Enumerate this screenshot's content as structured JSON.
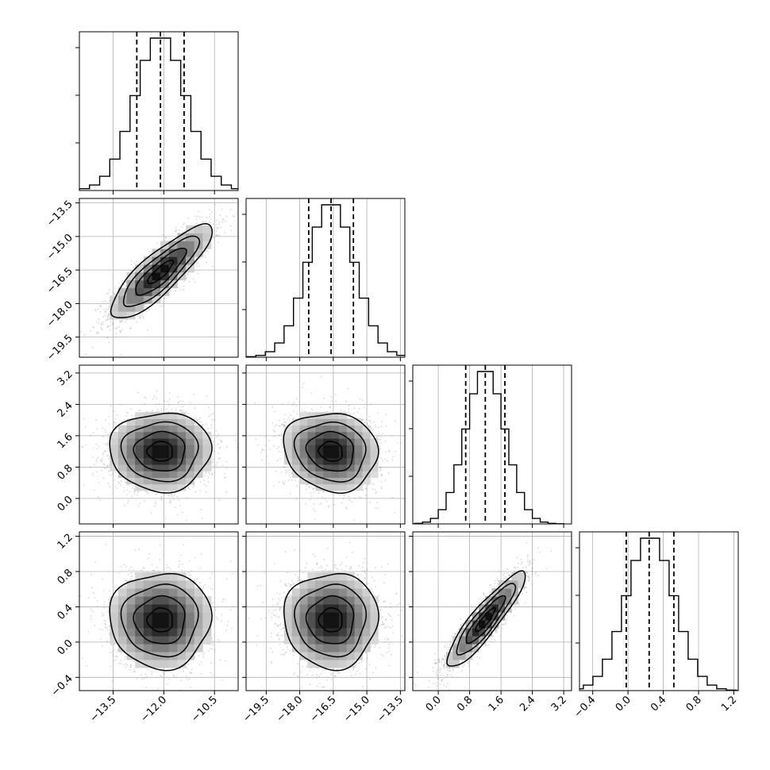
{
  "chart_data": {
    "type": "corner",
    "parameters": [
      {
        "range": [
          -14.5,
          -9.8
        ],
        "ticks": [
          -13.5,
          -12.0,
          -10.5
        ],
        "tick_labels": [
          "−13.5",
          "−12.0",
          "−10.5"
        ],
        "mean": -12.1,
        "sd": 0.75,
        "quantiles": [
          -12.8,
          -12.1,
          -11.4
        ]
      },
      {
        "range": [
          -20.4,
          -13.3
        ],
        "ticks": [
          -19.5,
          -18.0,
          -16.5,
          -15.0,
          -13.5
        ],
        "tick_labels": [
          "−19.5",
          "−18.0",
          "−16.5",
          "−15.0",
          "−13.5"
        ],
        "mean": -16.6,
        "sd": 1.05,
        "quantiles": [
          -17.6,
          -16.6,
          -15.6
        ]
      },
      {
        "range": [
          -0.65,
          3.4
        ],
        "ticks": [
          0.0,
          0.8,
          1.6,
          2.4,
          3.2
        ],
        "tick_labels": [
          "0.0",
          "0.8",
          "1.6",
          "2.4",
          "3.2"
        ],
        "mean": 1.2,
        "sd": 0.5,
        "quantiles": [
          0.7,
          1.2,
          1.7
        ]
      },
      {
        "range": [
          -0.55,
          1.25
        ],
        "ticks": [
          -0.4,
          0.0,
          0.4,
          0.8,
          1.2
        ],
        "tick_labels": [
          "−0.4",
          "0.0",
          "0.4",
          "0.8",
          "1.2"
        ],
        "mean": 0.25,
        "sd": 0.27,
        "quantiles": [
          -0.02,
          0.24,
          0.52
        ]
      }
    ],
    "correlations": [
      [
        1.0,
        0.85,
        0.0,
        0.0
      ],
      [
        0.85,
        1.0,
        -0.1,
        0.0
      ],
      [
        0.0,
        -0.1,
        1.0,
        0.9
      ],
      [
        0.0,
        0.0,
        0.9,
        1.0
      ]
    ],
    "contour_levels_sigma": [
      0.5,
      1.0,
      1.5,
      2.0
    ],
    "grid": true
  }
}
